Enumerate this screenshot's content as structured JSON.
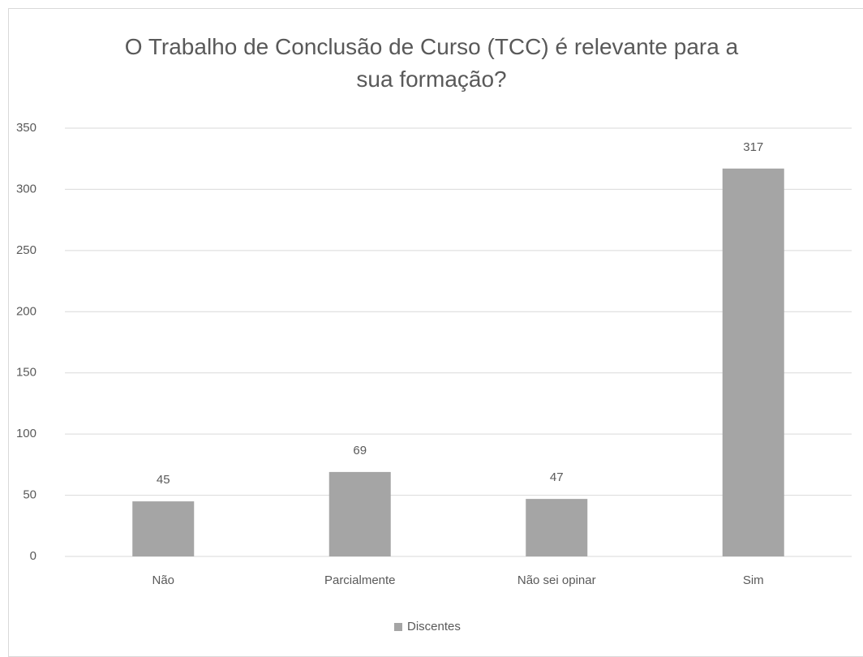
{
  "chart_data": {
    "type": "bar",
    "title": "O Trabalho de Conclusão de Curso (TCC) é relevante para a sua formação?",
    "categories": [
      "Não",
      "Parcialmente",
      "Não sei opinar",
      "Sim"
    ],
    "series": [
      {
        "name": "Discentes",
        "color": "#a5a5a5",
        "values": [
          45,
          69,
          47,
          317
        ]
      }
    ],
    "ylim": [
      0,
      350
    ],
    "yticks": [
      0,
      50,
      100,
      150,
      200,
      250,
      300,
      350
    ],
    "grid": true,
    "legend": "bottom"
  }
}
